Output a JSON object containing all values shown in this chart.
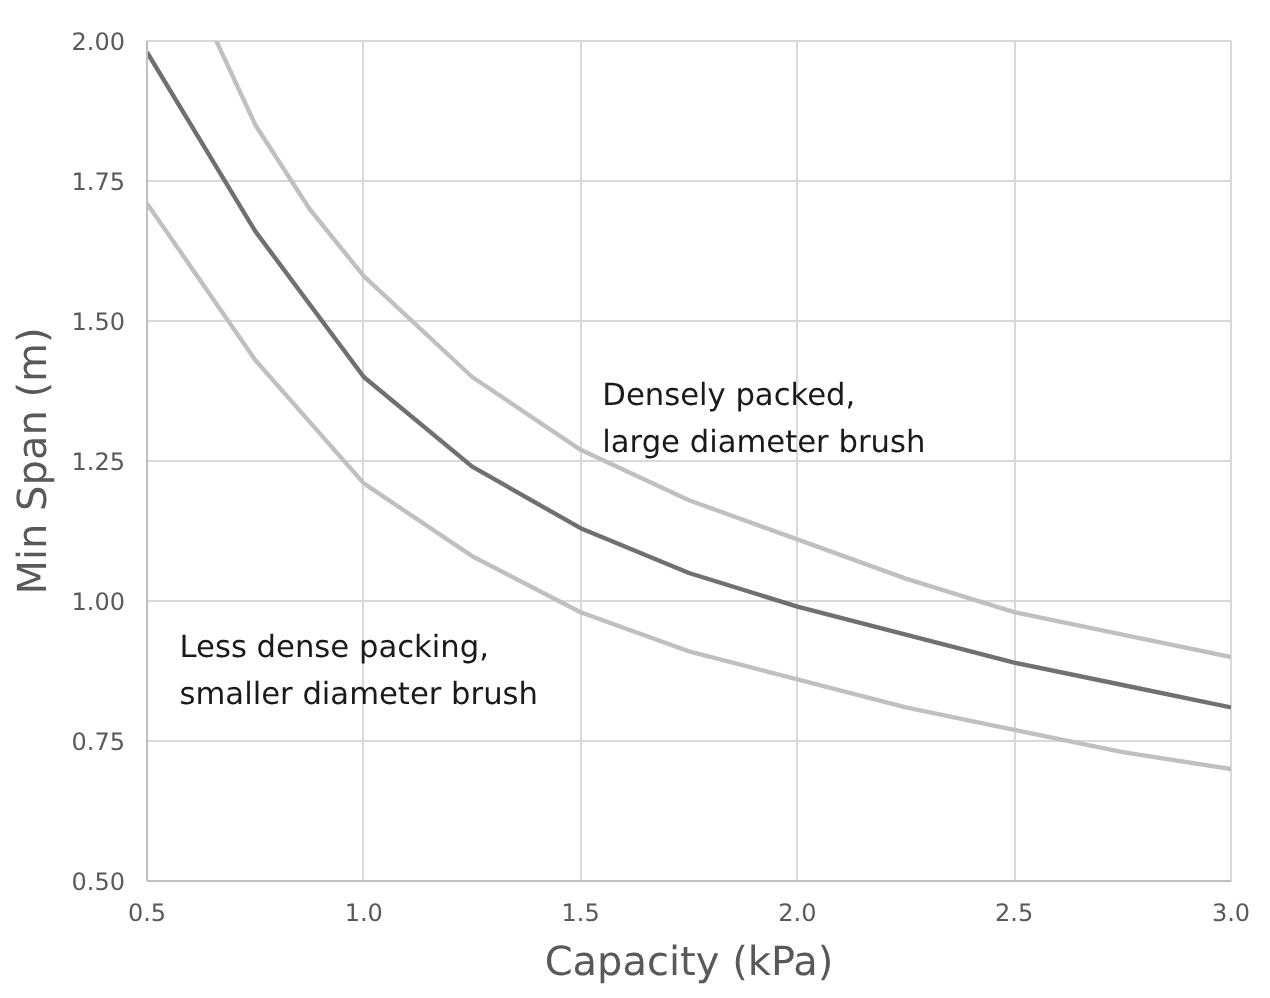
{
  "chart_data": {
    "type": "line",
    "xlabel": "Capacity (kPa)",
    "ylabel": "Min Span (m)",
    "xlim": [
      0.5,
      3.0
    ],
    "xticks": [
      {
        "value": 0.5,
        "label": "0.5"
      },
      {
        "value": 1.0,
        "label": "1.0"
      },
      {
        "value": 1.5,
        "label": "1.5"
      },
      {
        "value": 2.0,
        "label": "2.0"
      },
      {
        "value": 2.5,
        "label": "2.5"
      },
      {
        "value": 3.0,
        "label": "3.0"
      }
    ],
    "ylim": [
      0.5,
      2.0
    ],
    "yticks": [
      {
        "value": 0.5,
        "label": "0.50"
      },
      {
        "value": 0.75,
        "label": "0.75"
      },
      {
        "value": 1.0,
        "label": "1.00"
      },
      {
        "value": 1.25,
        "label": "1.25"
      },
      {
        "value": 1.5,
        "label": "1.50"
      },
      {
        "value": 1.75,
        "label": "1.75"
      },
      {
        "value": 2.0,
        "label": "2.00"
      }
    ],
    "grid": true,
    "marker": "none",
    "line_style": "solid",
    "series": [
      {
        "color": "#c0c0c0",
        "x": [
          0.66,
          0.75,
          0.875,
          1.0,
          1.25,
          1.5,
          1.75,
          2.0,
          2.25,
          2.5,
          2.75,
          3.0
        ],
        "values": [
          2.0,
          1.85,
          1.7,
          1.58,
          1.4,
          1.27,
          1.18,
          1.11,
          1.04,
          0.98,
          0.94,
          0.9
        ]
      },
      {
        "color": "#707070",
        "x": [
          0.5,
          0.75,
          1.0,
          1.25,
          1.5,
          1.75,
          2.0,
          2.25,
          2.5,
          2.75,
          3.0
        ],
        "values": [
          1.98,
          1.66,
          1.4,
          1.24,
          1.13,
          1.05,
          0.99,
          0.94,
          0.89,
          0.85,
          0.81
        ]
      },
      {
        "color": "#c0c0c0",
        "x": [
          0.5,
          0.75,
          1.0,
          1.25,
          1.5,
          1.75,
          2.0,
          2.25,
          2.5,
          2.75,
          3.0
        ],
        "values": [
          1.71,
          1.43,
          1.21,
          1.08,
          0.98,
          0.91,
          0.86,
          0.81,
          0.77,
          0.73,
          0.7
        ]
      }
    ],
    "annotations": [
      "Densely packed,\nlarge diameter brush",
      "Less dense packing,\nsmaller diameter brush"
    ]
  }
}
